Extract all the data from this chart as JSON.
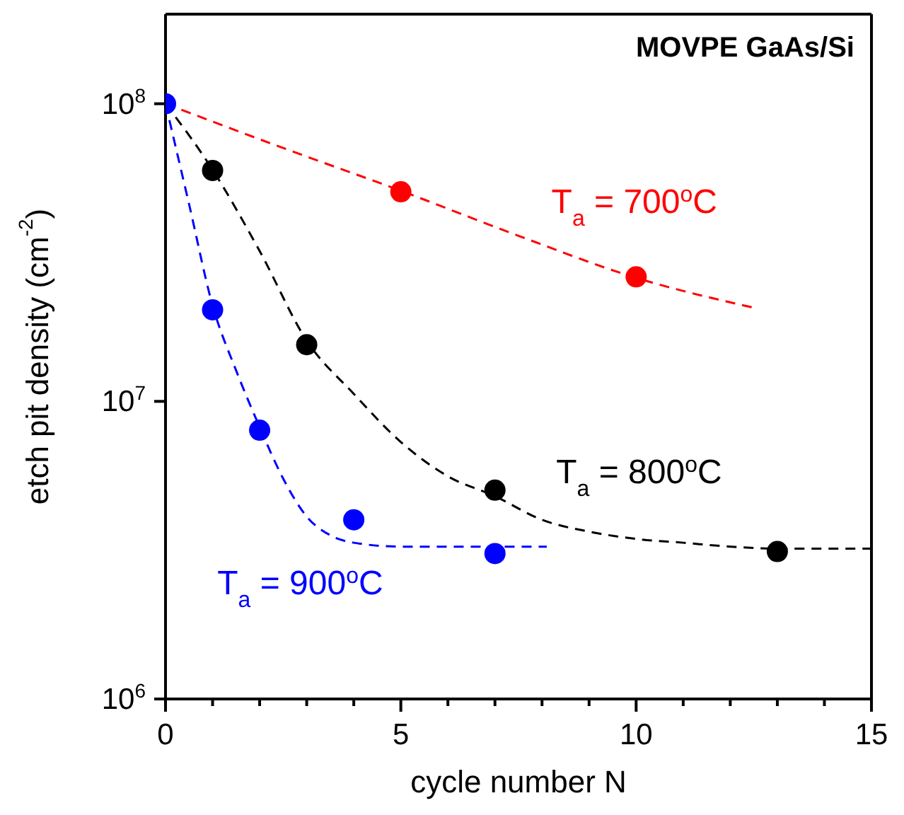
{
  "chart_data": {
    "type": "scatter",
    "title": "MOVPE GaAs/Si",
    "xlabel": "cycle number N",
    "ylabel": "etch pit density (cm$^{-2}$)",
    "log": "y",
    "grid": false,
    "legend": false,
    "xlim": [
      0,
      15
    ],
    "xticks": [
      0,
      {
        "value": 1,
        "label": null
      },
      {
        "value": 2,
        "label": null
      },
      {
        "value": 3,
        "label": null
      },
      {
        "value": 4,
        "label": null
      },
      5,
      {
        "value": 6,
        "label": null
      },
      {
        "value": 7,
        "label": null
      },
      {
        "value": 8,
        "label": null
      },
      {
        "value": 9,
        "label": null
      },
      10,
      {
        "value": 11,
        "label": null
      },
      {
        "value": 12,
        "label": null
      },
      {
        "value": 13,
        "label": null
      },
      {
        "value": 14,
        "label": null
      },
      15
    ],
    "ylim": [
      1000000,
      200000000
    ],
    "yticks": [
      {
        "value": 1000000,
        "label": "10$^{6}$"
      },
      {
        "value": 10000000,
        "label": "10$^{7}$"
      },
      {
        "value": 100000000,
        "label": "10$^{8}$"
      }
    ],
    "series": [
      {
        "type": "line",
        "color": "#ff0000",
        "line_style": "dashed",
        "marker": "none",
        "x": [
          0,
          2.5,
          5,
          7.5,
          10,
          12.46
        ],
        "values": [
          100000000,
          71000000,
          51000000,
          36000000,
          26000000,
          20700000
        ]
      },
      {
        "type": "line",
        "color": "#000000",
        "line_style": "dashed",
        "marker": "none",
        "x": [
          0,
          1,
          2,
          3,
          4,
          5,
          6,
          7,
          8,
          9,
          10,
          11,
          12,
          13,
          15
        ],
        "values": [
          100000000,
          60000000,
          32000000,
          16000000,
          10600000,
          7300000,
          5600000,
          4800000,
          4000000,
          3650000,
          3450000,
          3350000,
          3250000,
          3200000,
          3200000
        ]
      },
      {
        "type": "line",
        "color": "#0000ff",
        "line_style": "dashed",
        "marker": "none",
        "x": [
          0,
          0.5,
          1,
          1.5,
          2,
          2.5,
          3,
          3.5,
          4,
          5,
          8.1
        ],
        "values": [
          100000000,
          46000000,
          21000000,
          12700000,
          8200000,
          5500000,
          4100000,
          3550000,
          3350000,
          3250000,
          3250000
        ]
      },
      {
        "name": "T$_{a}$ = 700$^{o}$C",
        "color": "#ff0000",
        "marker": "circle",
        "x": [
          5,
          10
        ],
        "values": [
          50600000,
          26200000
        ]
      },
      {
        "name": "T$_{a}$ = 800$^{o}$C",
        "color": "#000000",
        "marker": "circle",
        "x": [
          1,
          3,
          7,
          13
        ],
        "values": [
          59700000,
          15500000,
          5030000,
          3130000
        ]
      },
      {
        "name": "T$_{a}$ = 900$^{o}$C",
        "color": "#0000ff",
        "marker": "circle",
        "x": [
          0,
          1,
          2,
          4,
          7
        ],
        "values": [
          100000000,
          20300000,
          8000000,
          4000000,
          3080000
        ]
      }
    ]
  }
}
